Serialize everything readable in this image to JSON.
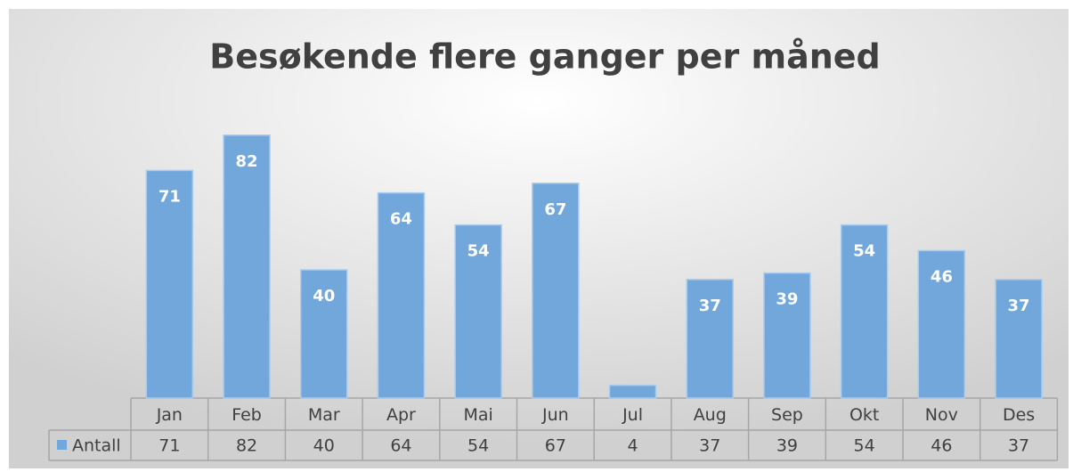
{
  "chart_data": {
    "type": "bar",
    "title": "Besøkende flere ganger per måned",
    "categories": [
      "Jan",
      "Feb",
      "Mar",
      "Apr",
      "Mai",
      "Jun",
      "Jul",
      "Aug",
      "Sep",
      "Okt",
      "Nov",
      "Des"
    ],
    "series": [
      {
        "name": "Antall",
        "color": "#72a7dc",
        "values": [
          71,
          82,
          40,
          64,
          54,
          67,
          4,
          37,
          39,
          54,
          46,
          37
        ]
      }
    ]
  }
}
